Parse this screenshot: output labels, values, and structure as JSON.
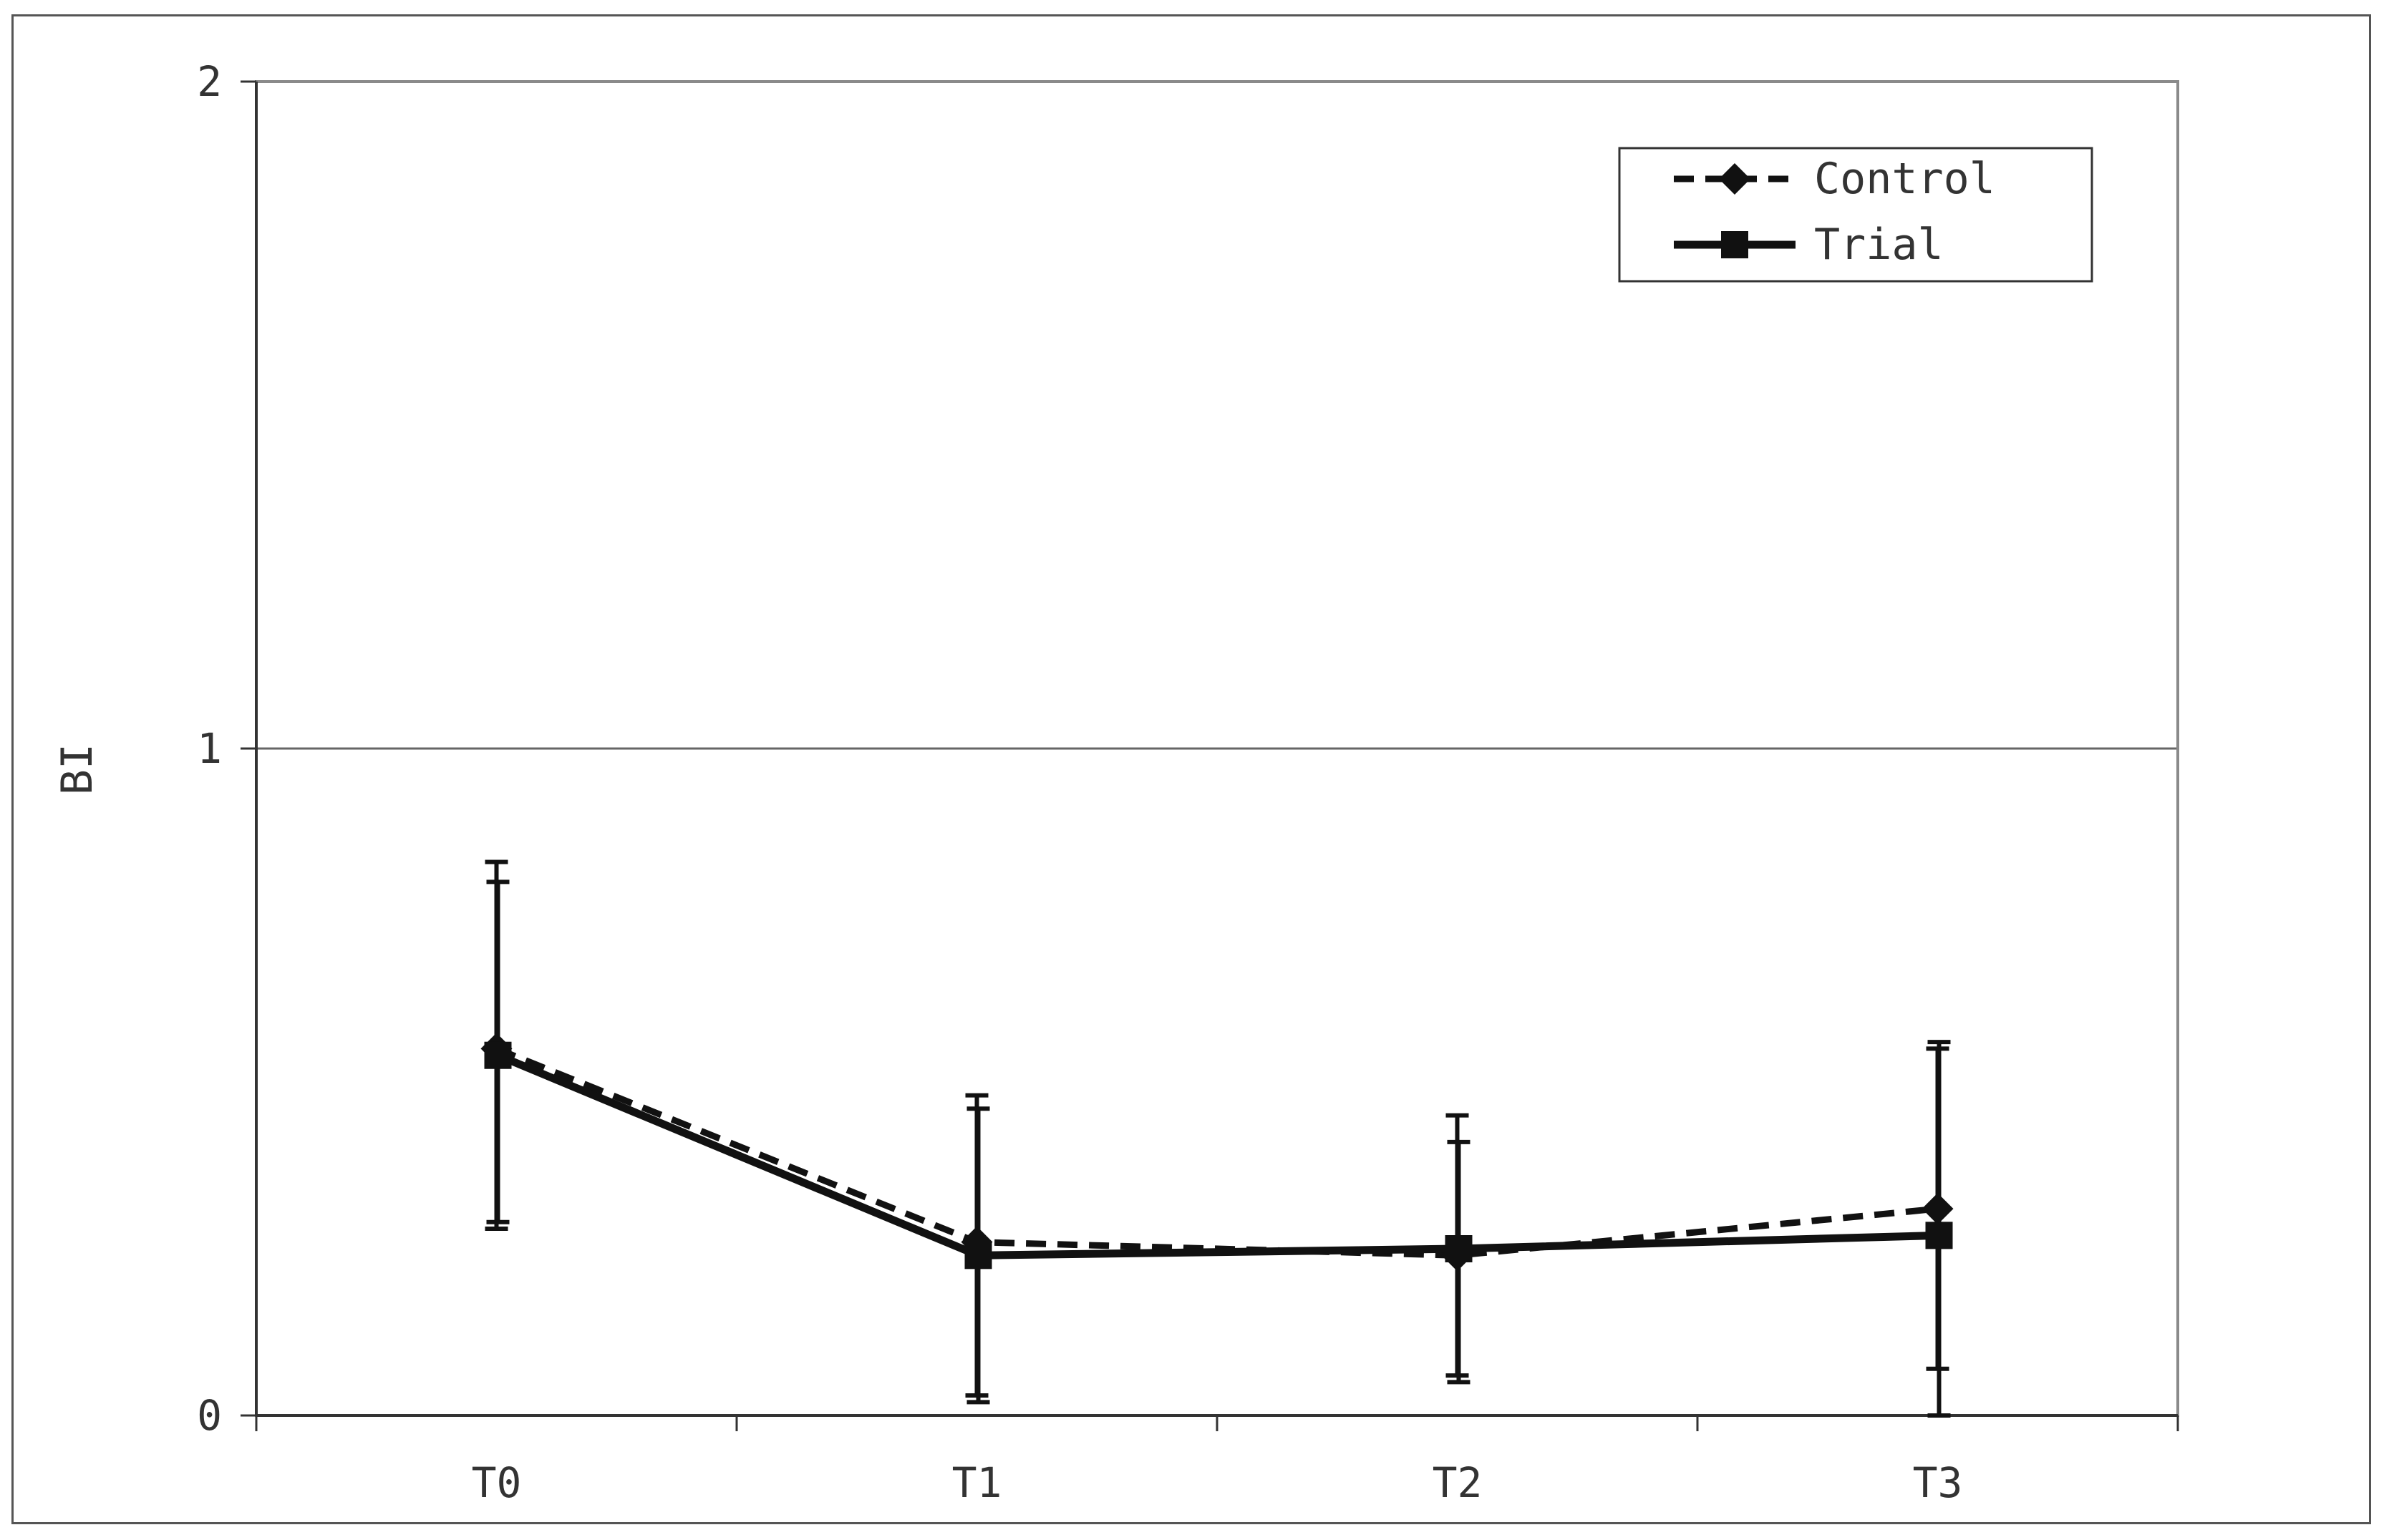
{
  "chart_data": {
    "type": "line",
    "title": "",
    "xlabel": "",
    "ylabel": "BI",
    "categories": [
      "T0",
      "T1",
      "T2",
      "T3"
    ],
    "ylim": [
      0,
      2
    ],
    "yticks": [
      "0",
      "1",
      "2"
    ],
    "grid": "horizontal at 1",
    "legend_position": "top-right",
    "series": [
      {
        "name": "Control",
        "style": "dashed",
        "marker": "diamond",
        "color": "#111111",
        "values": [
          0.55,
          0.26,
          0.24,
          0.31
        ],
        "error_low": [
          0.28,
          0.03,
          0.06,
          0.07
        ],
        "error_high": [
          0.83,
          0.48,
          0.45,
          0.55
        ]
      },
      {
        "name": "Trial",
        "style": "solid",
        "marker": "square",
        "color": "#111111",
        "values": [
          0.54,
          0.24,
          0.25,
          0.27
        ],
        "error_low": [
          0.29,
          0.02,
          0.05,
          0.0
        ],
        "error_high": [
          0.8,
          0.46,
          0.41,
          0.56
        ]
      }
    ]
  }
}
